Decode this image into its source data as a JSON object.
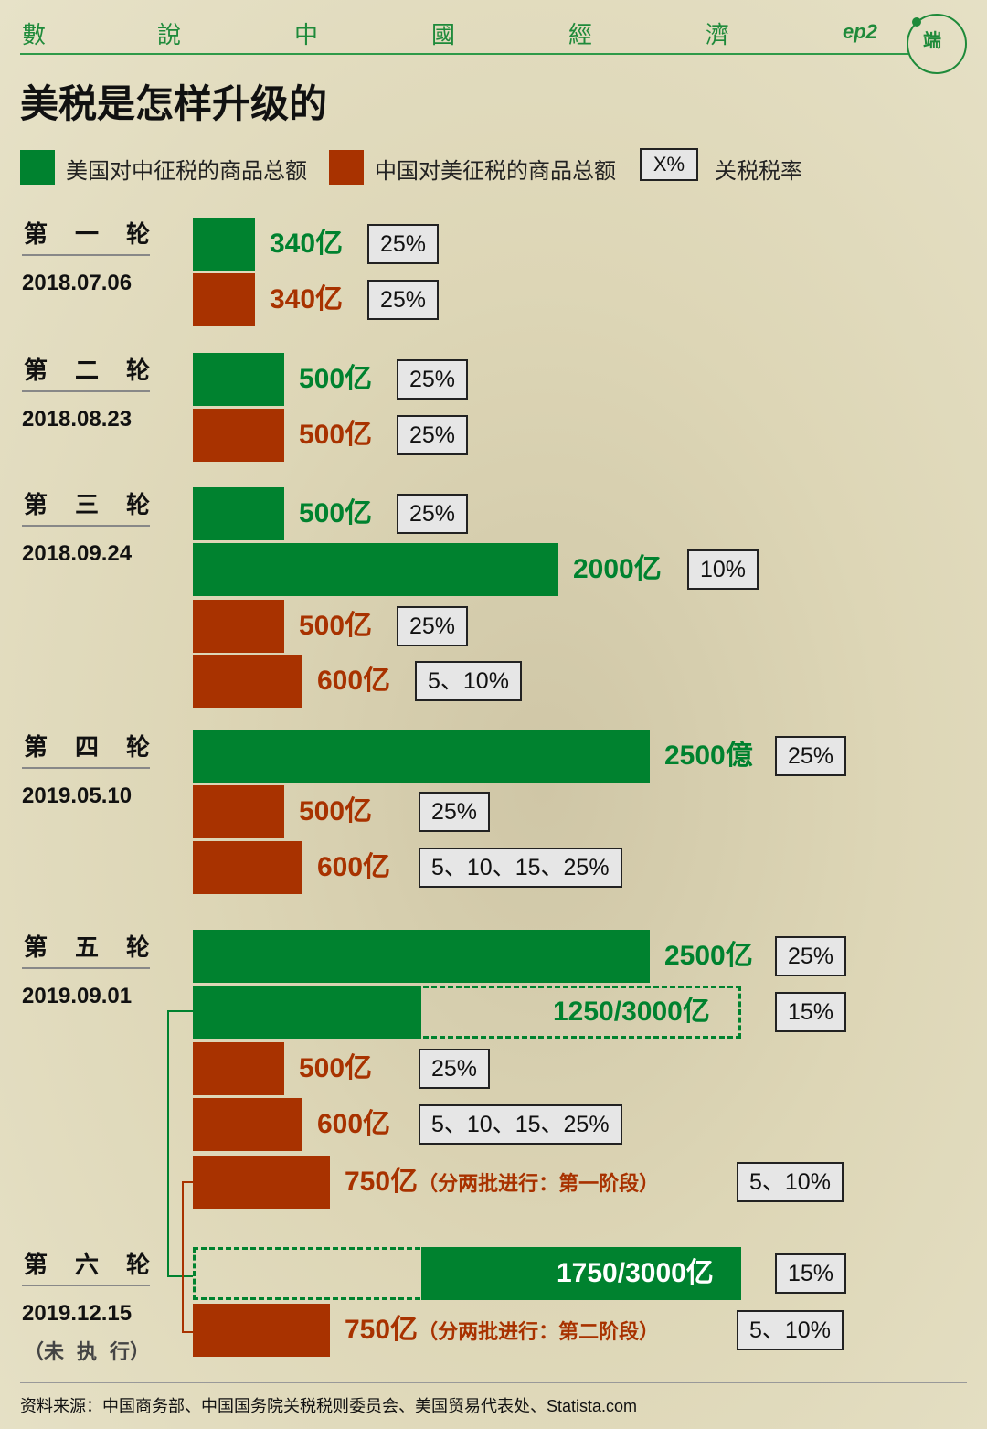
{
  "header": {
    "series_chars": [
      "數",
      "說",
      "中",
      "國",
      "經",
      "濟"
    ],
    "episode": "ep2",
    "logo_text": "端",
    "title": "美税是怎样升级的"
  },
  "legend": {
    "us_label": "美国对中征税的商品总额",
    "cn_label": "中国对美征税的商品总额",
    "rate_box": "X%",
    "rate_label": "关税税率"
  },
  "colors": {
    "us": "#00822f",
    "cn": "#a83200"
  },
  "rounds": [
    {
      "name": [
        "第",
        "一",
        "轮"
      ],
      "date": "2018.07.06"
    },
    {
      "name": [
        "第",
        "二",
        "轮"
      ],
      "date": "2018.08.23"
    },
    {
      "name": [
        "第",
        "三",
        "轮"
      ],
      "date": "2018.09.24"
    },
    {
      "name": [
        "第",
        "四",
        "轮"
      ],
      "date": "2019.05.10"
    },
    {
      "name": [
        "第",
        "五",
        "轮"
      ],
      "date": "2019.09.01"
    },
    {
      "name": [
        "第",
        "六",
        "轮"
      ],
      "date": "2019.12.15",
      "note": [
        "（未",
        "执",
        "行）"
      ]
    }
  ],
  "chart_data": {
    "type": "bar",
    "unit": "亿",
    "bars": [
      {
        "round": 1,
        "side": "us",
        "value": 340,
        "label": "340亿",
        "rate": "25%"
      },
      {
        "round": 1,
        "side": "cn",
        "value": 340,
        "label": "340亿",
        "rate": "25%"
      },
      {
        "round": 2,
        "side": "us",
        "value": 500,
        "label": "500亿",
        "rate": "25%"
      },
      {
        "round": 2,
        "side": "cn",
        "value": 500,
        "label": "500亿",
        "rate": "25%"
      },
      {
        "round": 3,
        "side": "us",
        "value": 500,
        "label": "500亿",
        "rate": "25%"
      },
      {
        "round": 3,
        "side": "us",
        "value": 2000,
        "label": "2000亿",
        "rate": "10%"
      },
      {
        "round": 3,
        "side": "cn",
        "value": 500,
        "label": "500亿",
        "rate": "25%"
      },
      {
        "round": 3,
        "side": "cn",
        "value": 600,
        "label": "600亿",
        "rate": "5、10%"
      },
      {
        "round": 4,
        "side": "us",
        "value": 2500,
        "label": "2500億",
        "rate": "25%"
      },
      {
        "round": 4,
        "side": "cn",
        "value": 500,
        "label": "500亿",
        "rate": "25%"
      },
      {
        "round": 4,
        "side": "cn",
        "value": 600,
        "label": "600亿",
        "rate": "5、10、15、25%"
      },
      {
        "round": 5,
        "side": "us",
        "value": 2500,
        "label": "2500亿",
        "rate": "25%"
      },
      {
        "round": 5,
        "side": "us",
        "value": 1250,
        "total": 3000,
        "label": "1250/3000亿",
        "rate": "15%"
      },
      {
        "round": 5,
        "side": "cn",
        "value": 500,
        "label": "500亿",
        "rate": "25%"
      },
      {
        "round": 5,
        "side": "cn",
        "value": 600,
        "label": "600亿",
        "rate": "5、10、15、25%"
      },
      {
        "round": 5,
        "side": "cn",
        "value": 750,
        "label": "750亿",
        "note": "（分两批进行：第一阶段）",
        "rate": "5、10%"
      },
      {
        "round": 6,
        "side": "us",
        "value": 1750,
        "total": 3000,
        "label": "1750/3000亿",
        "rate": "15%"
      },
      {
        "round": 6,
        "side": "cn",
        "value": 750,
        "label": "750亿",
        "note": "（分两批进行：第二阶段）",
        "rate": "5、10%"
      }
    ]
  },
  "source": "资料来源：中国商务部、中国国务院关税税则委员会、美国贸易代表处、Statista.com"
}
